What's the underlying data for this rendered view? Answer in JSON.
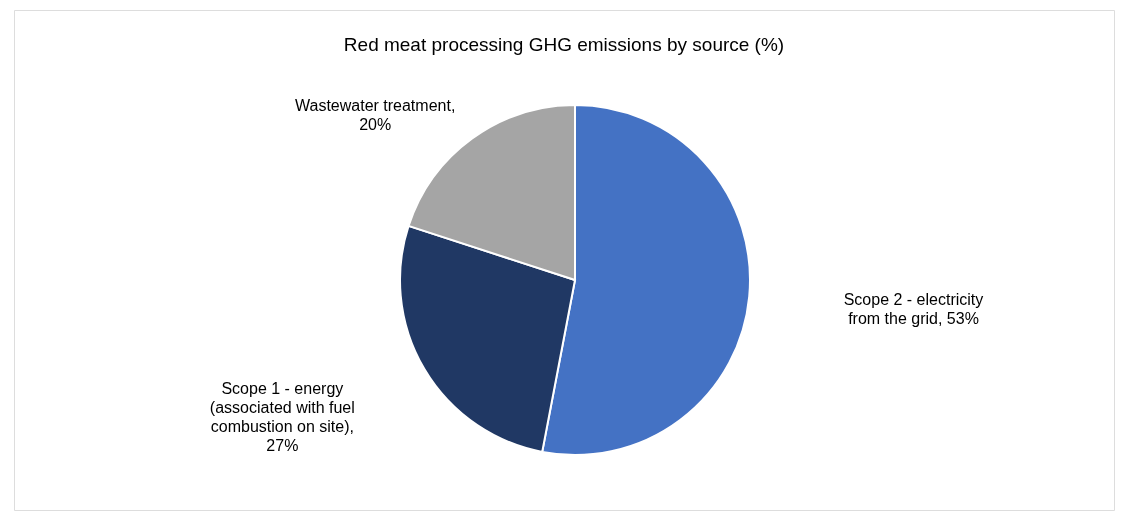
{
  "chart_data": {
    "type": "pie",
    "title": "Red meat processing GHG emissions by source (%)",
    "categories": [
      "Scope 2 - electricity from the grid, 53%",
      "Scope 1 - energy (associated with fuel combustion on site), 27%",
      "Wastewater treatment, 20%"
    ],
    "values": [
      53,
      27,
      20
    ],
    "colors": [
      "#4472c4",
      "#203864",
      "#a5a5a5"
    ],
    "legend": false
  }
}
